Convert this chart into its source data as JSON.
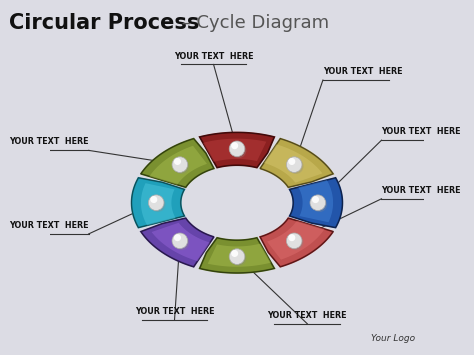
{
  "title_bold": "Circular Process",
  "title_dash": " – ",
  "title_regular": "Cycle Diagram",
  "label_text": "YOUR TEXT  HERE",
  "num_segments": 8,
  "segment_colors": [
    "#8B2020",
    "#B8A84A",
    "#2255AA",
    "#C05050",
    "#7A9030",
    "#6644AA",
    "#20A0BB",
    "#7A9030"
  ],
  "segment_colors_dark": [
    "#5A0A0A",
    "#807228",
    "#103070",
    "#8A2020",
    "#4A6010",
    "#3A2270",
    "#107888",
    "#4A6010"
  ],
  "segment_colors_light": [
    "#C04040",
    "#D8C870",
    "#4488DD",
    "#E07070",
    "#AABF50",
    "#9966DD",
    "#50C8E0",
    "#AABF50"
  ],
  "bg_color": "#DCDCE4",
  "logo_text": "Your Logo",
  "label_color": "#111111"
}
